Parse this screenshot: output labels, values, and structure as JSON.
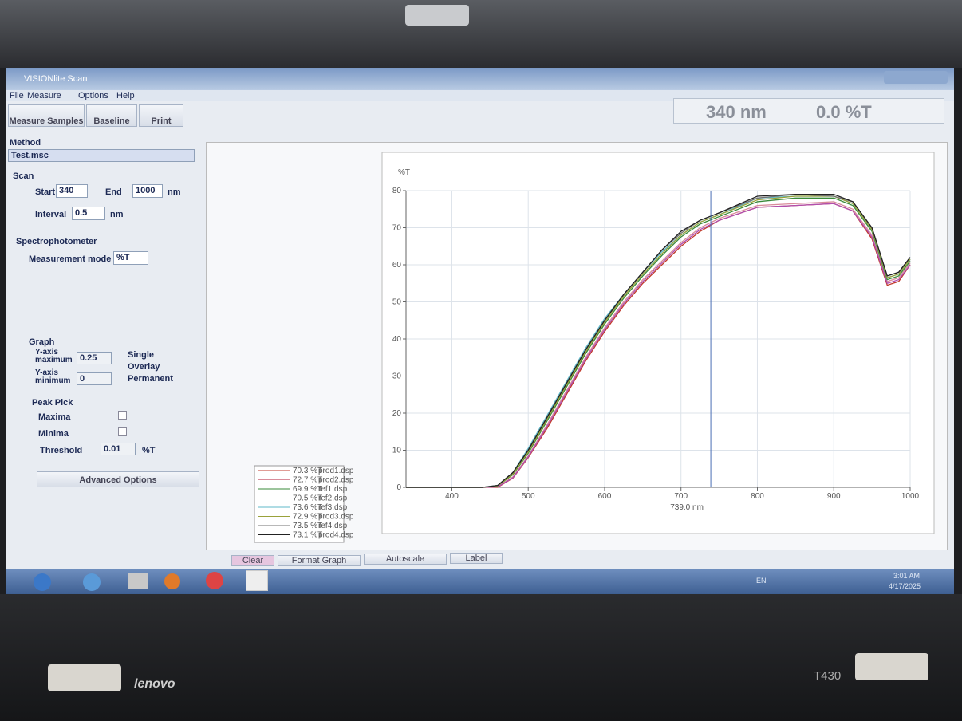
{
  "window": {
    "title": "VISIONlite Scan"
  },
  "menu": [
    "File",
    "Measure",
    "Options",
    "Help"
  ],
  "toolbar": [
    "Measure Samples",
    "Baseline",
    "Print"
  ],
  "status": {
    "wavelength": "340 nm",
    "reading": "0.0 %T"
  },
  "method": {
    "heading": "Method",
    "file": "Test.msc"
  },
  "scan": {
    "heading": "Scan",
    "start_label": "Start",
    "start": "340",
    "end_label": "End",
    "end": "1000",
    "unit": "nm",
    "interval_label": "Interval",
    "interval": "0.5",
    "interval_unit": "nm"
  },
  "spectrophotometer": {
    "heading": "Spectrophotometer",
    "mode_label": "Measurement mode",
    "mode": "%T"
  },
  "graph_settings": {
    "heading": "Graph",
    "ymax_label": "Y-axis maximum",
    "ymax": "0.25",
    "ymin_label": "Y-axis minimum",
    "ymin": "0",
    "options": [
      "Single",
      "Overlay",
      "Permanent"
    ]
  },
  "peak_pick": {
    "heading": "Peak Pick",
    "maxima": "Maxima",
    "minima": "Minima",
    "threshold_label": "Threshold",
    "threshold": "0.01",
    "threshold_unit": "%T"
  },
  "advanced": "Advanced Options",
  "chart_data": {
    "type": "line",
    "y_label": "%T",
    "x": [
      340,
      440,
      460,
      480,
      500,
      525,
      550,
      575,
      600,
      625,
      650,
      675,
      700,
      725,
      750,
      800,
      850,
      900,
      925,
      950,
      970,
      985,
      1000
    ],
    "series": [
      {
        "name": "prod1.dsp",
        "readout": "70.3 %T",
        "color": "#c0392b",
        "values": [
          0,
          0,
          0,
          2.5,
          8,
          16,
          25,
          34,
          42,
          49,
          55,
          60,
          65,
          69,
          72,
          75.5,
          76,
          76.5,
          74.5,
          67,
          54.5,
          55.5,
          60
        ]
      },
      {
        "name": "prod2.dsp",
        "readout": "72.7 %T",
        "color": "#d98c9a",
        "values": [
          0,
          0,
          0.2,
          2.8,
          8.5,
          17,
          26,
          35,
          43,
          50,
          56,
          61,
          66,
          70,
          72.5,
          76,
          76.5,
          77,
          75,
          68,
          55.5,
          56.5,
          60.5
        ]
      },
      {
        "name": "ref1.dsp",
        "readout": "69.9 %T",
        "color": "#3a8a3a",
        "values": [
          0,
          0,
          0.4,
          3.4,
          9.2,
          18,
          27,
          36,
          44,
          51,
          57,
          62.5,
          67.5,
          71,
          73,
          77,
          78,
          78,
          76,
          69,
          56,
          57,
          61
        ]
      },
      {
        "name": "ref2.dsp",
        "readout": "70.5 %T",
        "color": "#b04fb0",
        "values": [
          0,
          0,
          0.1,
          2.6,
          8.2,
          16.5,
          25.5,
          34.5,
          42.5,
          49.5,
          55.5,
          60.5,
          65.5,
          69.5,
          72,
          75.5,
          76,
          76.5,
          74.5,
          67.5,
          55,
          56,
          60
        ]
      },
      {
        "name": "ref3.dsp",
        "readout": "73.6 %T",
        "color": "#5fb8c8",
        "values": [
          0,
          0,
          0.5,
          4,
          10.5,
          19.5,
          28.5,
          37.5,
          45.5,
          52,
          58,
          63.5,
          68,
          71.5,
          73.5,
          78,
          78.5,
          78.5,
          76.5,
          69.5,
          56.5,
          57.5,
          61.5
        ]
      },
      {
        "name": "prod3.dsp",
        "readout": "72.9 %T",
        "color": "#9aa23a",
        "values": [
          0,
          0,
          0.4,
          3.6,
          9.5,
          18.5,
          27.5,
          36.5,
          44.5,
          51.5,
          57.5,
          63,
          68,
          71.5,
          73.5,
          77.5,
          78.5,
          78.5,
          76.5,
          69.5,
          56.5,
          57.5,
          61.5
        ]
      },
      {
        "name": "ref4.dsp",
        "readout": "73.5 %T",
        "color": "#707070",
        "values": [
          0,
          0,
          0.5,
          4,
          10,
          19,
          28,
          37,
          45,
          52,
          58,
          64,
          68.5,
          72,
          74,
          78,
          79,
          78.5,
          77,
          70,
          57,
          58,
          62
        ]
      },
      {
        "name": "prod4.dsp",
        "readout": "73.1 %T",
        "color": "#222222",
        "values": [
          0,
          0,
          0.5,
          4,
          10,
          19,
          28,
          37,
          45,
          52,
          58,
          64,
          69,
          72,
          74,
          78.5,
          79,
          79,
          77,
          70,
          57,
          58,
          62
        ]
      }
    ],
    "xlim": [
      340,
      1000
    ],
    "ylim": [
      0,
      80
    ],
    "xticks": [
      400,
      500,
      600,
      700,
      800,
      900,
      1000
    ],
    "yticks": [
      0,
      10,
      20,
      30,
      40,
      50,
      60,
      70,
      80
    ],
    "grid": true,
    "cursor": {
      "value": 739,
      "label": "739.0 nm"
    }
  },
  "graph_buttons": [
    "Clear",
    "Format Graph",
    "Autoscale",
    "Label"
  ],
  "taskbar": {
    "language": "EN",
    "time": "3:01 AM",
    "date": "4/17/2025"
  },
  "laptop": {
    "brand": "lenovo",
    "model": "T430"
  }
}
